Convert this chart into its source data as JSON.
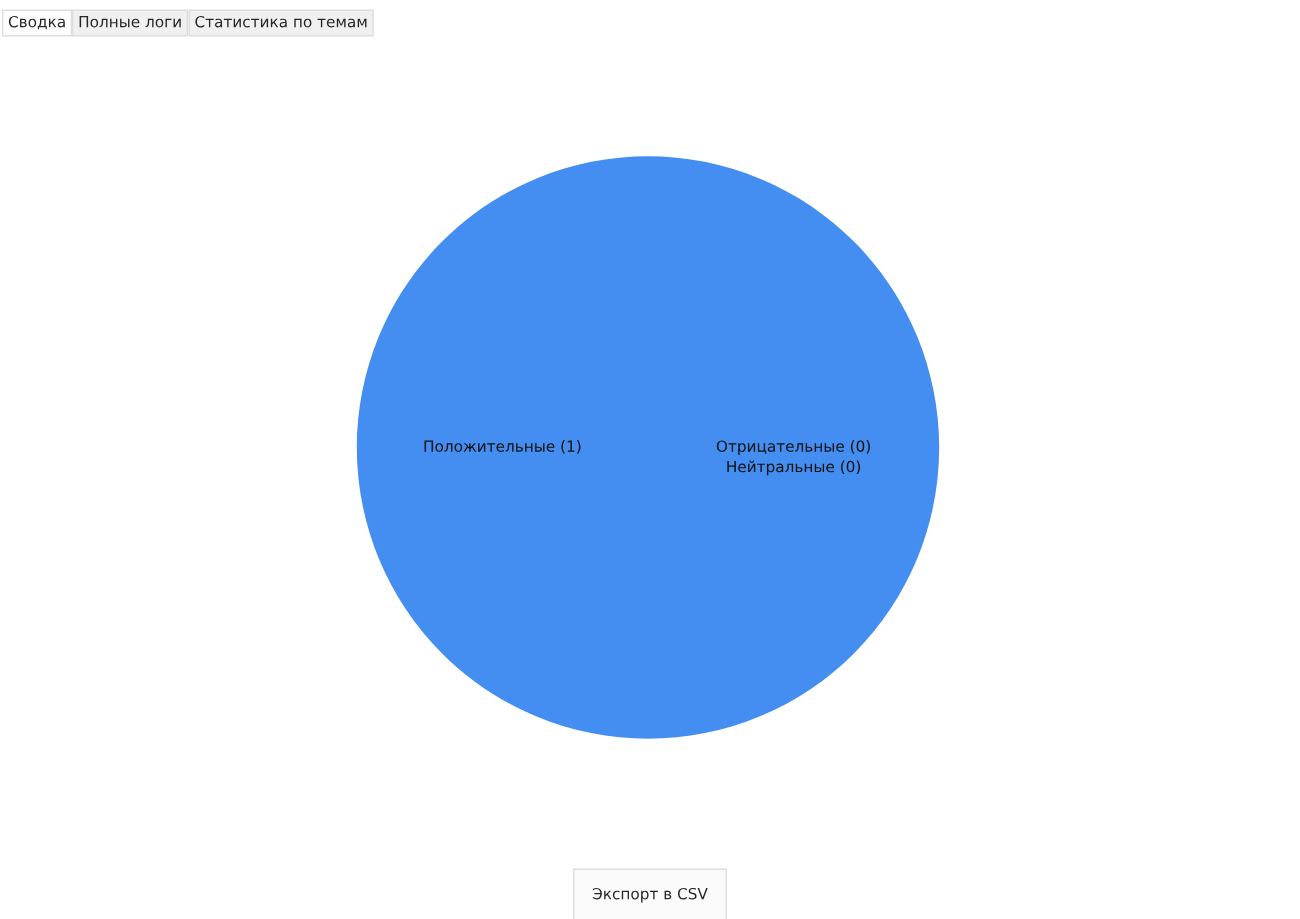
{
  "chart_data": {
    "type": "pie",
    "categories": [
      "Положительные (1)",
      "Отрицательные (0)",
      "Нейтральные (0)"
    ],
    "values": [
      1,
      0,
      0
    ],
    "colors": [
      "#438ef0",
      "#438ef0",
      "#438ef0"
    ],
    "annotations": [
      "Сводка",
      "Полные логи",
      "Статистика по темам",
      "Экспорт в CSV"
    ],
    "legend": false
  }
}
